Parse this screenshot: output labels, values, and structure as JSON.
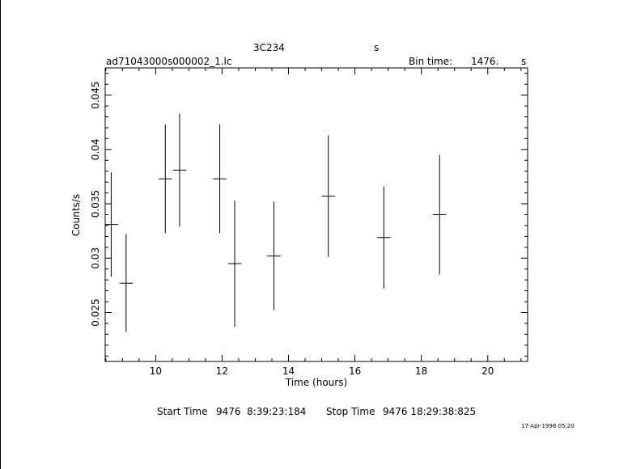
{
  "header": {
    "object": "3C234",
    "object_suffix": "s",
    "filename": "ad71043000s000002_1.lc",
    "bin_time_label": "Bin time:",
    "bin_time_value": "1476.",
    "bin_time_unit": "s"
  },
  "footer": {
    "start_label": "Start Time",
    "start_value": "9476  8:39:23:184",
    "stop_label": "Stop Time",
    "stop_value": "9476 18:29:38:825",
    "timestamp": "17-Apr-1998 05:20"
  },
  "chart_data": {
    "type": "scatter",
    "title": "3C234",
    "xlabel": "Time (hours)",
    "ylabel": "Counts/s",
    "xlim": [
      8.48,
      21.2
    ],
    "ylim": [
      0.0205,
      0.0475
    ],
    "x_ticks": [
      10,
      12,
      14,
      16,
      18,
      20
    ],
    "y_ticks": [
      0.025,
      0.03,
      0.035,
      0.04,
      0.045
    ],
    "x_tick_labels": [
      "10",
      "12",
      "14",
      "16",
      "18",
      "20"
    ],
    "y_tick_labels": [
      "0.025",
      "0.03",
      "0.035",
      "0.04",
      "0.045"
    ],
    "grid": false,
    "points": [
      {
        "x": 8.66,
        "xerr": 0.2,
        "y": 0.0331,
        "yerr": 0.0048
      },
      {
        "x": 9.11,
        "xerr": 0.2,
        "y": 0.0277,
        "yerr": 0.0045
      },
      {
        "x": 10.29,
        "xerr": 0.2,
        "y": 0.0373,
        "yerr": 0.005
      },
      {
        "x": 10.72,
        "xerr": 0.2,
        "y": 0.0381,
        "yerr": 0.0052
      },
      {
        "x": 11.93,
        "xerr": 0.2,
        "y": 0.0373,
        "yerr": 0.005
      },
      {
        "x": 12.38,
        "xerr": 0.2,
        "y": 0.0295,
        "yerr": 0.0058
      },
      {
        "x": 13.56,
        "xerr": 0.2,
        "y": 0.0302,
        "yerr": 0.005
      },
      {
        "x": 15.2,
        "xerr": 0.2,
        "y": 0.0357,
        "yerr": 0.0056
      },
      {
        "x": 16.87,
        "xerr": 0.2,
        "y": 0.0319,
        "yerr": 0.0047
      },
      {
        "x": 18.55,
        "xerr": 0.2,
        "y": 0.034,
        "yerr": 0.0055
      }
    ]
  }
}
